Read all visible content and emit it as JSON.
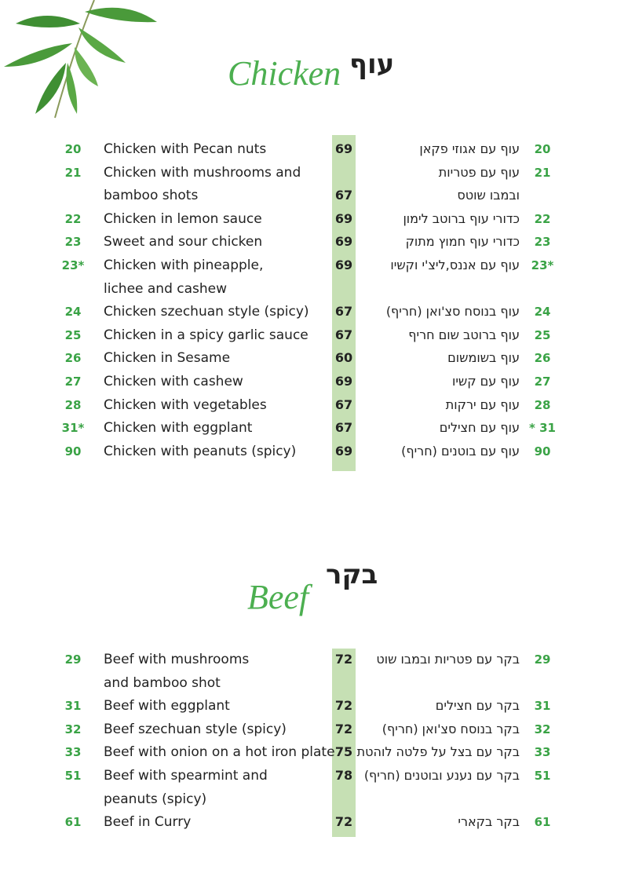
{
  "sections": [
    {
      "title": "עוף",
      "script_title": "Chicken",
      "items": [
        {
          "number": "20",
          "english": [
            "Chicken with Pecan nuts"
          ],
          "price": "69",
          "hebrew": [
            "עוף עם אגוזי פקאן"
          ],
          "number_he": "20"
        },
        {
          "number": "21",
          "english": [
            "Chicken with mushrooms and",
            "bamboo shots"
          ],
          "price": "67",
          "hebrew": [
            "עוף עם פטריות",
            "ובמבו שוטס"
          ],
          "number_he": "21"
        },
        {
          "number": "22",
          "english": [
            "Chicken in lemon sauce"
          ],
          "price": "69",
          "hebrew": [
            "כדורי עוף ברוטב לימון"
          ],
          "number_he": "22"
        },
        {
          "number": "23",
          "english": [
            "Sweet and sour chicken"
          ],
          "price": "69",
          "hebrew": [
            "כדורי עוף חמוץ מתוק"
          ],
          "number_he": "23"
        },
        {
          "number": "23*",
          "english": [
            "Chicken with pineapple,",
            "lichee and cashew"
          ],
          "price": "69",
          "hebrew": [
            "עוף עם אננס,ליצ'י וקשיו"
          ],
          "number_he": "23*"
        },
        {
          "number": "24",
          "english": [
            "Chicken szechuan style (spicy)"
          ],
          "price": "67",
          "hebrew": [
            "עוף בנוסח סצ'ואן (חריף)"
          ],
          "number_he": "24"
        },
        {
          "number": "25",
          "english": [
            "Chicken in a spicy garlic sauce"
          ],
          "price": "67",
          "hebrew": [
            "עוף ברוטב שום חריף"
          ],
          "number_he": "25"
        },
        {
          "number": "26",
          "english": [
            "Chicken in Sesame"
          ],
          "price": "60",
          "hebrew": [
            "עוף בשומשום"
          ],
          "number_he": "26"
        },
        {
          "number": "27",
          "english": [
            "Chicken with cashew"
          ],
          "price": "69",
          "hebrew": [
            "עוף עם קשיו"
          ],
          "number_he": "27"
        },
        {
          "number": "28",
          "english": [
            "Chicken with vegetables"
          ],
          "price": "67",
          "hebrew": [
            "עוף עם ירקות"
          ],
          "number_he": "28"
        },
        {
          "number": "31*",
          "english": [
            "Chicken with eggplant"
          ],
          "price": "67",
          "hebrew": [
            "עוף עם חצילים"
          ],
          "number_he": "* 31"
        },
        {
          "number": "90",
          "english": [
            "Chicken with peanuts (spicy)"
          ],
          "price": "69",
          "hebrew": [
            "עוף עם בוטנים (חריף)"
          ],
          "number_he": "90"
        }
      ]
    },
    {
      "title": "בקר",
      "script_title": "Beef",
      "items": [
        {
          "number": "29",
          "english": [
            "Beef with mushrooms",
            "and bamboo shot"
          ],
          "price": "72",
          "hebrew": [
            "בקר עם פטריות ובמבו שוט"
          ],
          "number_he": "29"
        },
        {
          "number": "31",
          "english": [
            "Beef with eggplant"
          ],
          "price": "72",
          "hebrew": [
            "בקר עם חצילים"
          ],
          "number_he": "31"
        },
        {
          "number": "32",
          "english": [
            "Beef szechuan style (spicy)"
          ],
          "price": "72",
          "hebrew": [
            "בקר בנוסח סצ'ואן (חריף)"
          ],
          "number_he": "32"
        },
        {
          "number": "33",
          "english": [
            "Beef with onion on a hot iron plate"
          ],
          "price": "75",
          "hebrew": [
            "בקר עם בצל על פלטה לוהטת"
          ],
          "number_he": "33"
        },
        {
          "number": "51",
          "english": [
            "Beef with spearmint and",
            "peanuts (spicy)"
          ],
          "price": "78",
          "hebrew": [
            "בקר עם נענע ובוטנים (חריף)"
          ],
          "number_he": "51"
        },
        {
          "number": "61",
          "english": [
            "Beef in Curry"
          ],
          "price": "72",
          "hebrew": [
            "בקר בקארי"
          ],
          "number_he": "61"
        }
      ]
    }
  ]
}
